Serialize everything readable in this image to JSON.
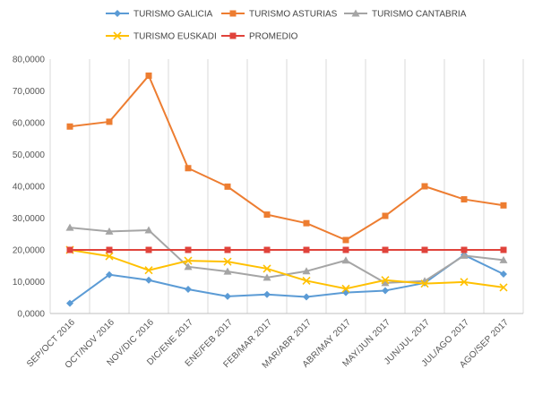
{
  "chart_data": {
    "type": "line",
    "title": "",
    "xlabel": "",
    "ylabel": "",
    "ylim": [
      0,
      80000
    ],
    "grid": "vertical",
    "legend_position": "top",
    "categories": [
      "SEP/OCT 2016",
      "OCT/NOV 2016",
      "NOV/DIC 2016",
      "DIC/ENE 2017",
      "ENE/FEB 2017",
      "FEB/MAR 2017",
      "MAR/ABR 2017",
      "ABR/MAY 2017",
      "MAY/JUN 2017",
      "JUN/JUL 2017",
      "JUL/AGO 2017",
      "AGO/SEP 2017"
    ],
    "y_ticks": [
      0,
      10000,
      20000,
      30000,
      40000,
      50000,
      60000,
      70000,
      80000
    ],
    "y_tick_labels": [
      "0,0000",
      "10,0000",
      "20,0000",
      "30,0000",
      "40,0000",
      "50,0000",
      "60,0000",
      "70,0000",
      "80,0000"
    ],
    "series": [
      {
        "name": "TURISMO GALICIA",
        "color": "#5b9bd5",
        "marker": "diamond",
        "values": [
          3200,
          12200,
          10500,
          7600,
          5400,
          6000,
          5200,
          6600,
          7200,
          9600,
          18400,
          12400
        ]
      },
      {
        "name": "TURISMO ASTURIAS",
        "color": "#ed7d31",
        "marker": "square",
        "values": [
          58800,
          60300,
          74800,
          45700,
          39900,
          31100,
          28400,
          23100,
          30700,
          40000,
          35900,
          34000
        ]
      },
      {
        "name": "TURISMO CANTABRIA",
        "color": "#a5a5a5",
        "marker": "triangle",
        "values": [
          27000,
          25800,
          26200,
          14700,
          13200,
          11300,
          13300,
          16700,
          9600,
          10200,
          18200,
          16800
        ]
      },
      {
        "name": "TURISMO EUSKADI",
        "color": "#ffc000",
        "marker": "x",
        "values": [
          20000,
          18000,
          13600,
          16600,
          16300,
          14100,
          10300,
          7800,
          10500,
          9400,
          9900,
          8200
        ]
      },
      {
        "name": "PROMEDIO",
        "color": "#e0433b",
        "marker": "square",
        "values": [
          20000,
          20000,
          20000,
          20000,
          20000,
          20000,
          20000,
          20000,
          20000,
          20000,
          20000,
          20000
        ]
      }
    ]
  }
}
